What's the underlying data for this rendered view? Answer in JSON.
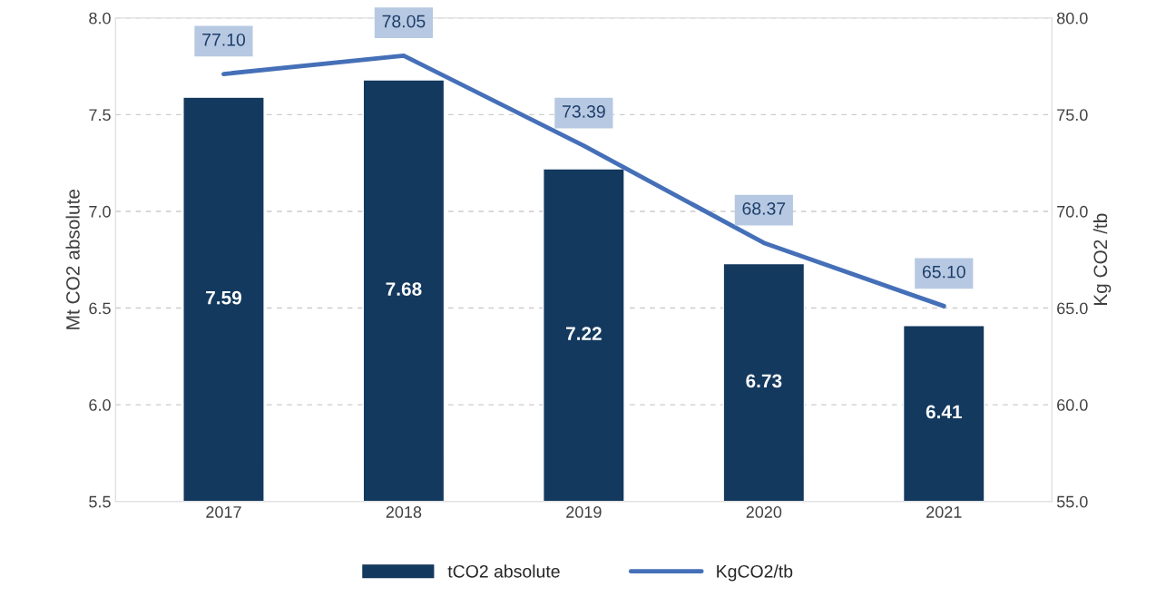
{
  "chart_data": {
    "type": "bar",
    "categories": [
      "2017",
      "2018",
      "2019",
      "2020",
      "2021"
    ],
    "series": [
      {
        "name": "tCO2 absolute",
        "color": "#14395e",
        "values": [
          7.59,
          7.68,
          7.22,
          6.73,
          6.41
        ],
        "value_labels": [
          "7.59",
          "7.68",
          "7.22",
          "6.73",
          "6.41"
        ]
      },
      {
        "name": "KgCO2/tb",
        "type": "line",
        "axis": "y2",
        "color": "#4570b8",
        "values": [
          77.1,
          78.05,
          73.39,
          68.37,
          65.1
        ],
        "value_labels": [
          "77.10",
          "78.05",
          "73.39",
          "68.37",
          "65.10"
        ]
      }
    ],
    "ylabel": "Mt CO2 absolute",
    "y2label": "Kg CO2 /tb",
    "ylim": [
      5.5,
      8.0
    ],
    "yticks": [
      5.5,
      {
        "value": 6,
        "label": "6.0"
      },
      6.5,
      {
        "value": 7,
        "label": "7.0"
      },
      7.5,
      {
        "value": 8,
        "label": "8.0"
      }
    ],
    "y2lim": [
      55,
      80
    ],
    "y2ticks": [
      {
        "value": 55,
        "label": "55.0"
      },
      {
        "value": 60,
        "label": "60.0"
      },
      {
        "value": 65,
        "label": "65.0"
      },
      {
        "value": 70,
        "label": "70.0"
      },
      {
        "value": 75,
        "label": "75.0"
      },
      {
        "value": 80,
        "label": "80.0"
      }
    ],
    "grid": "y",
    "legend": "bottom",
    "marker": "none",
    "line_style": "solid"
  }
}
